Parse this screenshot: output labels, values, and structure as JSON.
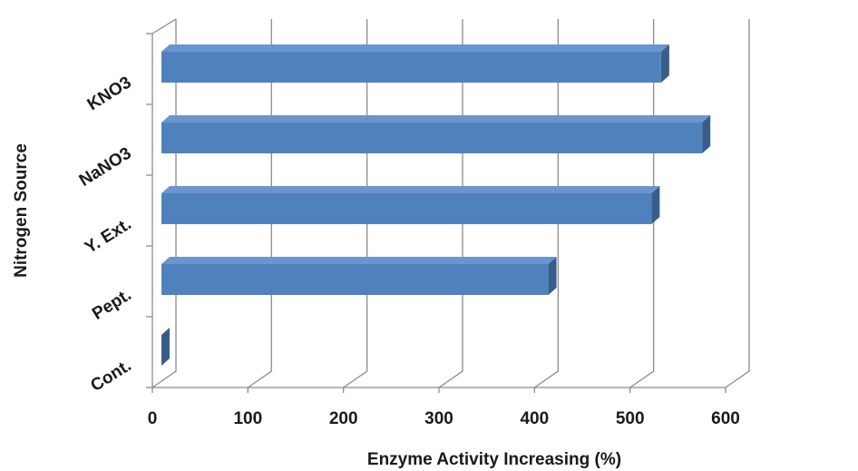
{
  "chart_data": {
    "type": "bar",
    "orientation": "horizontal",
    "style": "3d",
    "categories": [
      "Cont.",
      "Pept.",
      "Y. Ext.",
      "NaNO3",
      "KNO3"
    ],
    "values": [
      0,
      405,
      513,
      566,
      523
    ],
    "xlabel": "Enzyme Activity Increasing (%)",
    "ylabel": "Nitrogen Source",
    "xlim": [
      0,
      600
    ],
    "xticks": [
      "0",
      "100",
      "200",
      "300",
      "400",
      "500",
      "600"
    ],
    "grid": true,
    "legend": "none",
    "colors": {
      "bar_front": "#4f81bd",
      "bar_top": "#6b95cf",
      "bar_side": "#385d8a",
      "grid": "#8c8c8c"
    }
  }
}
